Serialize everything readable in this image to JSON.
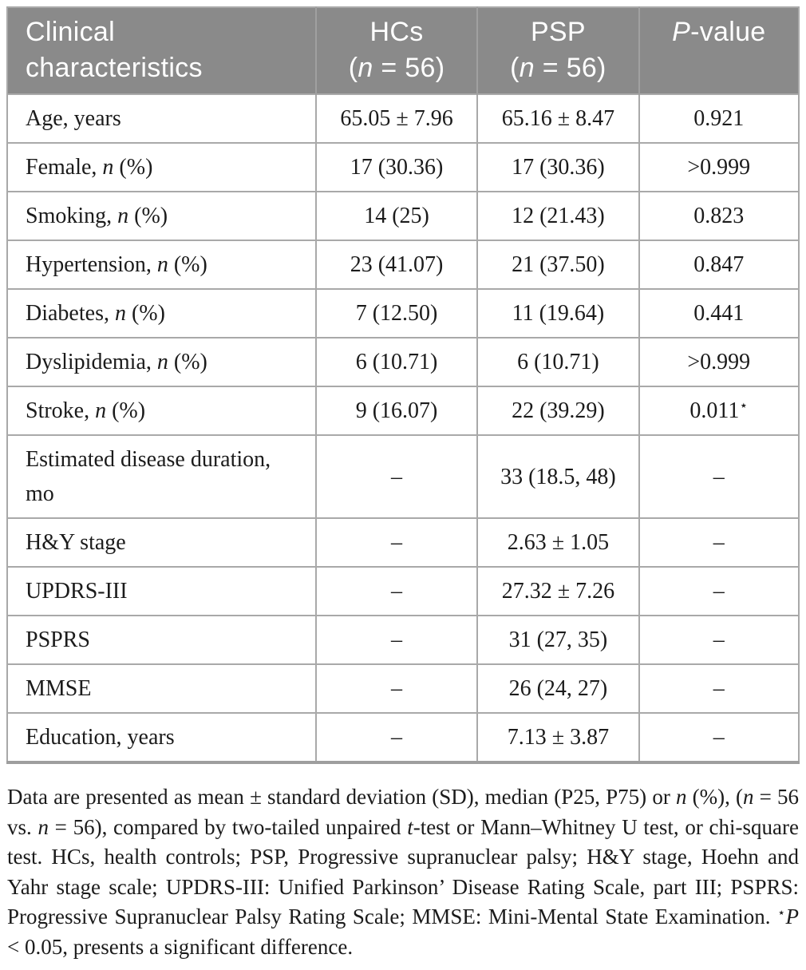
{
  "colors": {
    "header_bg": "#8a8a8a",
    "header_text": "#ffffff",
    "grid_line": "#a9a9a9",
    "body_text": "#1b1b1b"
  },
  "table": {
    "header": {
      "col1": {
        "line1": "Clinical",
        "line2": "characteristics"
      },
      "col2": {
        "line1": "HCs",
        "line2_pre": "(",
        "line2_it": "n",
        "line2_post": " = 56)"
      },
      "col3": {
        "line1": "PSP",
        "line2_pre": "(",
        "line2_it": "n",
        "line2_post": " = 56)"
      },
      "col4": {
        "it": "P",
        "post": "-value"
      }
    },
    "rows": [
      {
        "label_pre": "Age, years",
        "label_it": "",
        "label_post": "",
        "hc": "65.05 ± 7.96",
        "psp": "65.16 ± 8.47",
        "p": "0.921",
        "p_sup": ""
      },
      {
        "label_pre": "Female, ",
        "label_it": "n",
        "label_post": " (%)",
        "hc": "17 (30.36)",
        "psp": "17 (30.36)",
        "p": ">0.999",
        "p_sup": ""
      },
      {
        "label_pre": "Smoking, ",
        "label_it": "n",
        "label_post": " (%)",
        "hc": "14 (25)",
        "psp": "12 (21.43)",
        "p": "0.823",
        "p_sup": ""
      },
      {
        "label_pre": "Hypertension, ",
        "label_it": "n",
        "label_post": " (%)",
        "hc": "23 (41.07)",
        "psp": "21 (37.50)",
        "p": "0.847",
        "p_sup": ""
      },
      {
        "label_pre": "Diabetes, ",
        "label_it": "n",
        "label_post": " (%)",
        "hc": "7 (12.50)",
        "psp": "11 (19.64)",
        "p": "0.441",
        "p_sup": ""
      },
      {
        "label_pre": "Dyslipidemia, ",
        "label_it": "n",
        "label_post": " (%)",
        "hc": "6 (10.71)",
        "psp": "6 (10.71)",
        "p": ">0.999",
        "p_sup": ""
      },
      {
        "label_pre": "Stroke, ",
        "label_it": "n",
        "label_post": " (%)",
        "hc": "9 (16.07)",
        "psp": "22 (39.29)",
        "p": "0.011",
        "p_sup": "⋆"
      },
      {
        "label_pre": "Estimated disease duration, mo",
        "label_it": "",
        "label_post": "",
        "hc": "–",
        "psp": "33 (18.5, 48)",
        "p": "–",
        "p_sup": ""
      },
      {
        "label_pre": "H&Y stage",
        "label_it": "",
        "label_post": "",
        "hc": "–",
        "psp": "2.63 ± 1.05",
        "p": "–",
        "p_sup": ""
      },
      {
        "label_pre": "UPDRS-III",
        "label_it": "",
        "label_post": "",
        "hc": "–",
        "psp": "27.32 ± 7.26",
        "p": "–",
        "p_sup": ""
      },
      {
        "label_pre": "PSPRS",
        "label_it": "",
        "label_post": "",
        "hc": "–",
        "psp": "31 (27, 35)",
        "p": "–",
        "p_sup": ""
      },
      {
        "label_pre": "MMSE",
        "label_it": "",
        "label_post": "",
        "hc": "–",
        "psp": "26 (24, 27)",
        "p": "–",
        "p_sup": ""
      },
      {
        "label_pre": "Education, years",
        "label_it": "",
        "label_post": "",
        "hc": "–",
        "psp": "7.13 ± 3.87",
        "p": "–",
        "p_sup": ""
      }
    ]
  },
  "footnote": {
    "parts": [
      {
        "t": "Data are presented as mean ± standard deviation (SD), median (P25, P75) or "
      },
      {
        "t": "n"
      },
      {
        "t": " (%), ("
      },
      {
        "t": "n"
      },
      {
        "t": " = 56 vs. "
      },
      {
        "t": "n"
      },
      {
        "t": " = 56), compared by two-tailed unpaired "
      },
      {
        "t": "t"
      },
      {
        "t": "-test or Mann–Whitney U test, or chi-square test. HCs, health controls; PSP, Progressive supranuclear palsy; H&Y stage, Hoehn and Yahr stage scale; UPDRS-III: Unified Parkinson’ Disease Rating Scale, part III; PSPRS: Progressive Supranuclear Palsy Rating Scale; MMSE: Mini-Mental State Examination. "
      },
      {
        "t": "⋆"
      },
      {
        "t": "P"
      },
      {
        "t": " < 0.05, presents a significant difference."
      }
    ]
  }
}
